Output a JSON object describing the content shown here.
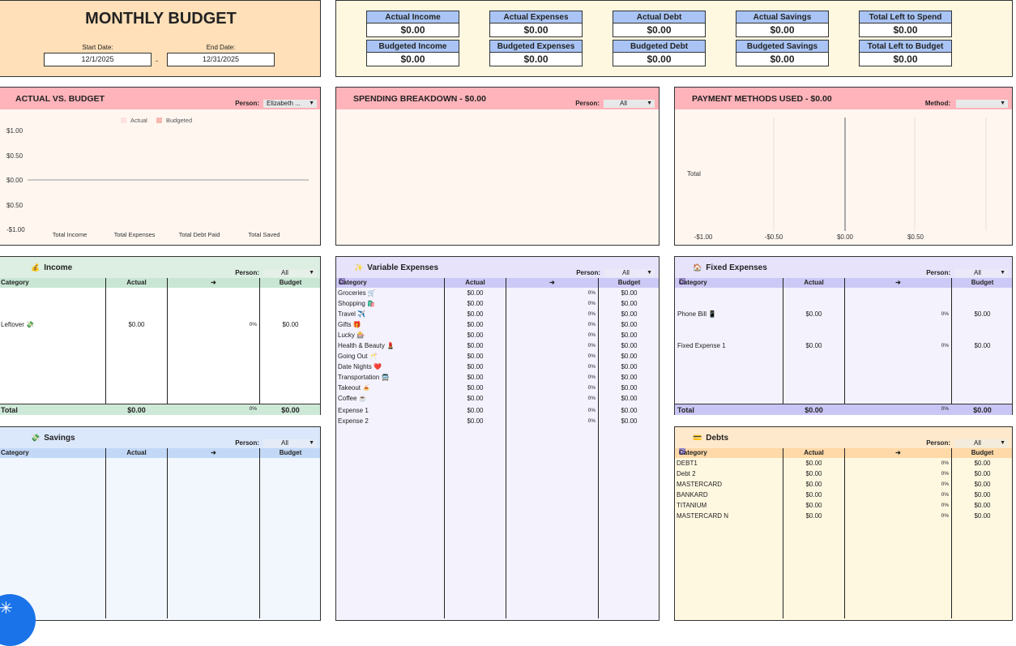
{
  "title": "MONTHLY BUDGET",
  "dates": {
    "start_label": "Start Date:",
    "start": "12/1/2025",
    "end_label": "End Date:",
    "end": "12/31/2025",
    "sep": "-"
  },
  "summary": [
    {
      "label": "Actual Income",
      "value": "$0.00"
    },
    {
      "label": "Actual Expenses",
      "value": "$0.00"
    },
    {
      "label": "Actual Debt",
      "value": "$0.00"
    },
    {
      "label": "Actual Savings",
      "value": "$0.00"
    },
    {
      "label": "Total Left to Spend",
      "value": "$0.00"
    },
    {
      "label": "Budgeted Income",
      "value": "$0.00"
    },
    {
      "label": "Budgeted Expenses",
      "value": "$0.00"
    },
    {
      "label": "Budgeted Debt",
      "value": "$0.00"
    },
    {
      "label": "Budgeted Savings",
      "value": "$0.00"
    },
    {
      "label": "Total Left to Budget",
      "value": "$0.00"
    }
  ],
  "avb": {
    "title": "ACTUAL VS. BUDGET",
    "person_label": "Person:",
    "person_value": "Elizabeth ...",
    "legend": [
      "Actual",
      "Budgeted"
    ],
    "yticks": [
      "$1.00",
      "$0.50",
      "$0.00",
      "$0.50",
      "-$1.00"
    ],
    "categories": [
      "Total Income",
      "Total Expenses",
      "Total Debt Paid",
      "Total Saved"
    ]
  },
  "spend": {
    "title": "SPENDING BREAKDOWN - $0.00",
    "person_label": "Person:",
    "person_value": "All"
  },
  "pay": {
    "title": "PAYMENT METHODS USED - $0.00",
    "method_label": "Method:",
    "method_value": "",
    "row_label": "Total",
    "xticks": [
      "-$1.00",
      "-$0.50",
      "$0.00",
      "$0.50"
    ]
  },
  "income": {
    "title": "Income",
    "icon": "💰",
    "person_label": "Person:",
    "person_value": "All",
    "cols": [
      "Category",
      "Actual",
      "➜",
      "Budget"
    ],
    "rows": [
      {
        "cat": "Leftover 💸",
        "actual": "$0.00",
        "pct": "0%",
        "budget": "$0.00"
      }
    ],
    "total": {
      "label": "Total",
      "actual": "$0.00",
      "pct": "0%",
      "budget": "$0.00"
    }
  },
  "savings": {
    "title": "Savings",
    "icon": "💸",
    "person_label": "Person:",
    "person_value": "All",
    "cols": [
      "Category",
      "Actual",
      "➜",
      "Budget"
    ]
  },
  "variable": {
    "title": "Variable Expenses",
    "icon": "✨",
    "person_label": "Person:",
    "person_value": "All",
    "cols": [
      "Category",
      "Actual",
      "➜",
      "Budget"
    ],
    "rows": [
      {
        "cat": "Groceries 🛒",
        "actual": "$0.00",
        "pct": "0%",
        "budget": "$0.00"
      },
      {
        "cat": "Shopping 🛍️",
        "actual": "$0.00",
        "pct": "0%",
        "budget": "$0.00"
      },
      {
        "cat": "Travel ✈️",
        "actual": "$0.00",
        "pct": "0%",
        "budget": "$0.00"
      },
      {
        "cat": "Gifts 🎁",
        "actual": "$0.00",
        "pct": "0%",
        "budget": "$0.00"
      },
      {
        "cat": "Lucky 🎰",
        "actual": "$0.00",
        "pct": "0%",
        "budget": "$0.00"
      },
      {
        "cat": "Health & Beauty 💄",
        "actual": "$0.00",
        "pct": "0%",
        "budget": "$0.00"
      },
      {
        "cat": "Going Out 🥂",
        "actual": "$0.00",
        "pct": "0%",
        "budget": "$0.00"
      },
      {
        "cat": "Date Nights ❤️",
        "actual": "$0.00",
        "pct": "0%",
        "budget": "$0.00"
      },
      {
        "cat": "Transportation 🚍",
        "actual": "$0.00",
        "pct": "0%",
        "budget": "$0.00"
      },
      {
        "cat": "Takeout 🍝",
        "actual": "$0.00",
        "pct": "0%",
        "budget": "$0.00"
      },
      {
        "cat": "Coffee ☕",
        "actual": "$0.00",
        "pct": "0%",
        "budget": "$0.00"
      },
      {
        "cat": "Expense 1",
        "actual": "$0.00",
        "pct": "0%",
        "budget": "$0.00"
      },
      {
        "cat": "Expense 2",
        "actual": "$0.00",
        "pct": "0%",
        "budget": "$0.00"
      }
    ]
  },
  "fixed": {
    "title": "Fixed Expenses",
    "icon": "🏠",
    "person_label": "Person:",
    "person_value": "All",
    "cols": [
      "Category",
      "Actual",
      "➜",
      "Budget"
    ],
    "rows": [
      {
        "cat": "Phone Bill 📱",
        "actual": "$0.00",
        "pct": "0%",
        "budget": "$0.00"
      },
      {
        "cat": "Fixed Expense 1",
        "actual": "$0.00",
        "pct": "0%",
        "budget": "$0.00"
      }
    ],
    "total": {
      "label": "Total",
      "actual": "$0.00",
      "pct": "0%",
      "budget": "$0.00"
    }
  },
  "debts": {
    "title": "Debts",
    "icon": "💳",
    "person_label": "Person:",
    "person_value": "All",
    "cols": [
      "Category",
      "Actual",
      "➜",
      "Budget"
    ],
    "rows": [
      {
        "cat": "DEBT1",
        "actual": "$0.00",
        "pct": "0%",
        "budget": "$0.00"
      },
      {
        "cat": "Debt 2",
        "actual": "$0.00",
        "pct": "0%",
        "budget": "$0.00"
      },
      {
        "cat": "MASTERCARD",
        "actual": "$0.00",
        "pct": "0%",
        "budget": "$0.00"
      },
      {
        "cat": "BANKARD",
        "actual": "$0.00",
        "pct": "0%",
        "budget": "$0.00"
      },
      {
        "cat": "TITANIUM",
        "actual": "$0.00",
        "pct": "0%",
        "budget": "$0.00"
      },
      {
        "cat": "MASTERCARD N",
        "actual": "$0.00",
        "pct": "0%",
        "budget": "$0.00"
      }
    ]
  },
  "colors": {
    "peach": "#ffe0b8",
    "cream": "#fff8e1",
    "pink": "#ffb3ba",
    "pinkbg": "#fff6f0",
    "green": "#d9efdf",
    "greenhead": "#cfe9d8",
    "lavender": "#e6e3fb",
    "lavhead": "#c9c6f5",
    "blue": "#dbe7fb",
    "bluehead": "#c2d8f6",
    "accent": "#1a73e8"
  }
}
